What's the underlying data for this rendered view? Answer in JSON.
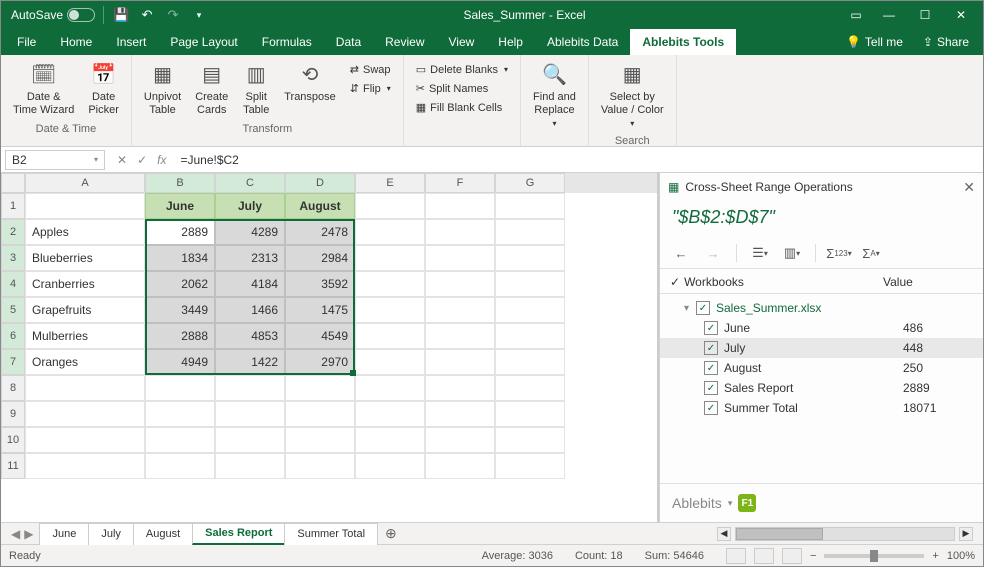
{
  "titlebar": {
    "autosave": "AutoSave",
    "title": "Sales_Summer  -  Excel"
  },
  "menutabs": [
    "File",
    "Home",
    "Insert",
    "Page Layout",
    "Formulas",
    "Data",
    "Review",
    "View",
    "Help",
    "Ablebits Data",
    "Ablebits Tools"
  ],
  "activeTab": 10,
  "tellme": "Tell me",
  "share": "Share",
  "ribbon": {
    "groups": [
      {
        "label": "Date & Time",
        "buttons": [
          {
            "t": "Date &\nTime Wizard"
          },
          {
            "t": "Date\nPicker"
          }
        ]
      },
      {
        "label": "Transform",
        "buttons": [
          {
            "t": "Unpivot\nTable"
          },
          {
            "t": "Create\nCards"
          },
          {
            "t": "Split\nTable"
          },
          {
            "t": "Transpose"
          }
        ],
        "small": [
          {
            "t": "Swap"
          },
          {
            "t": "Flip"
          }
        ]
      },
      {
        "label": "",
        "small": [
          {
            "t": "Delete Blanks"
          },
          {
            "t": "Split Names"
          },
          {
            "t": "Fill Blank Cells"
          }
        ]
      },
      {
        "label": "",
        "buttons": [
          {
            "t": "Find and\nReplace"
          }
        ]
      },
      {
        "label": "Search",
        "buttons": [
          {
            "t": "Select by\nValue / Color"
          }
        ]
      }
    ]
  },
  "formula": {
    "cellref": "B2",
    "formula": "=June!$C2"
  },
  "columns": [
    "A",
    "B",
    "C",
    "D",
    "E",
    "F",
    "G"
  ],
  "colWidths": {
    "A": 120,
    "B": 70,
    "C": 70,
    "D": 70,
    "E": 70,
    "F": 70,
    "G": 70
  },
  "headerRow": {
    "B": "June",
    "C": "July",
    "D": "August"
  },
  "rows": [
    {
      "n": 2,
      "A": "Apples",
      "B": "2889",
      "C": "4289",
      "D": "2478",
      "first": true
    },
    {
      "n": 3,
      "A": "Blueberries",
      "B": "1834",
      "C": "2313",
      "D": "2984"
    },
    {
      "n": 4,
      "A": "Cranberries",
      "B": "2062",
      "C": "4184",
      "D": "3592"
    },
    {
      "n": 5,
      "A": "Grapefruits",
      "B": "3449",
      "C": "1466",
      "D": "1475"
    },
    {
      "n": 6,
      "A": "Mulberries",
      "B": "2888",
      "C": "4853",
      "D": "4549"
    },
    {
      "n": 7,
      "A": "Oranges",
      "B": "4949",
      "C": "1422",
      "D": "2970"
    }
  ],
  "blankRows": [
    8,
    9,
    10,
    11
  ],
  "selection": {
    "range": "B2:D7",
    "activeCell": "B2"
  },
  "sheets": [
    "June",
    "July",
    "August",
    "Sales Report",
    "Summer Total"
  ],
  "activeSheet": 3,
  "status": {
    "ready": "Ready",
    "avg": "Average: 3036",
    "count": "Count: 18",
    "sum": "Sum: 54646",
    "zoom": "100%"
  },
  "panel": {
    "title": "Cross-Sheet Range Operations",
    "range": "\"$B$2:$D$7\"",
    "head1": "Workbooks",
    "head2": "Value",
    "file": "Sales_Summer.xlsx",
    "items": [
      {
        "label": "June",
        "value": "486"
      },
      {
        "label": "July",
        "value": "448",
        "selected": true
      },
      {
        "label": "August",
        "value": "250"
      },
      {
        "label": "Sales Report",
        "value": "2889"
      },
      {
        "label": "Summer Total",
        "value": "18071"
      }
    ],
    "brand": "Ablebits"
  }
}
